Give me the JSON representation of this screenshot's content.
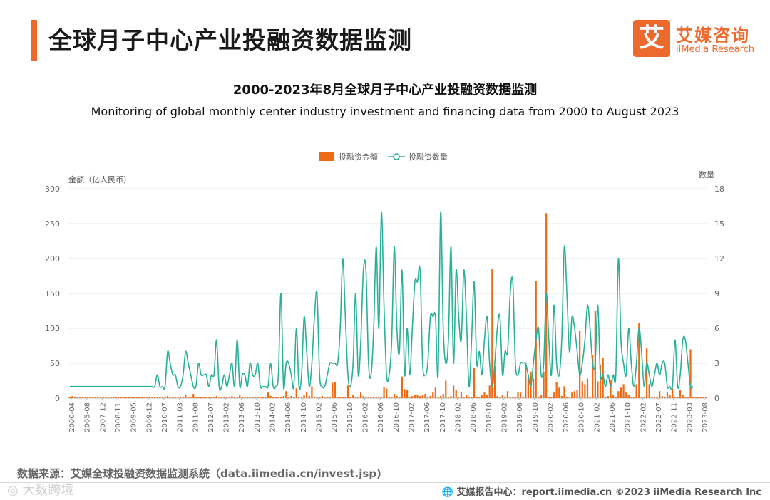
{
  "header": {
    "title": "全球月子中心产业投融资数据监测",
    "logo_glyph": "艾",
    "logo_cn": "艾媒咨询",
    "logo_en": "iiMedia Research",
    "accent": "#ee6a2c"
  },
  "chart_data": {
    "type": "bar+line",
    "title": "2000-2023年8月全球月子中心产业投融资数据监测",
    "subtitle": "Monitoring of global monthly center industry investment and financing data from 2000 to August 2023",
    "left_axis_label": "金额（亿人民币）",
    "right_axis_label": "数量",
    "left_ylim": [
      0,
      300
    ],
    "left_ticks": [
      0,
      50,
      100,
      150,
      200,
      250,
      300
    ],
    "right_ylim": [
      0,
      18
    ],
    "right_ticks": [
      0,
      3,
      6,
      9,
      12,
      15,
      18
    ],
    "x_tick_labels": [
      "2000-04",
      "2005-08",
      "2007-12",
      "2008-11",
      "2009-05",
      "2009-12",
      "2010-07",
      "2011-03",
      "2011-08",
      "2012-07",
      "2013-02",
      "2013-06",
      "2013-10",
      "2014-02",
      "2014-06",
      "2014-10",
      "2015-02",
      "2015-06",
      "2015-10",
      "2016-02",
      "2016-06",
      "2016-10",
      "2017-02",
      "2017-06",
      "2017-10",
      "2018-02",
      "2018-06",
      "2018-10",
      "2019-02",
      "2019-06",
      "2019-10",
      "2020-02",
      "2020-06",
      "2020-10",
      "2021-02",
      "2021-06",
      "2021-10",
      "2022-02",
      "2022-07",
      "2022-11",
      "2023-03",
      "2023-08"
    ],
    "series": [
      {
        "name": "投融资金额",
        "type": "bar",
        "axis": "left",
        "color": "#ee6a14",
        "values": [
          1,
          3,
          1,
          1,
          1,
          1,
          1,
          1,
          1,
          1,
          1,
          1,
          1,
          1,
          1,
          1,
          1,
          1,
          1,
          2,
          1,
          1,
          1,
          1,
          1,
          1,
          1,
          1,
          1,
          1,
          1,
          2,
          1,
          1,
          1,
          1,
          1,
          2,
          3,
          1,
          2,
          1,
          1,
          1,
          2,
          5,
          1,
          2,
          6,
          1,
          2,
          1,
          1,
          2,
          1,
          1,
          2,
          3,
          1,
          2,
          1,
          1,
          1,
          3,
          1,
          2,
          4,
          1,
          1,
          2,
          1,
          1,
          1,
          2,
          1,
          1,
          1,
          8,
          3,
          1,
          2,
          1,
          1,
          3,
          10,
          2,
          3,
          1,
          14,
          2,
          1,
          5,
          8,
          3,
          17,
          2,
          1,
          1,
          3,
          1,
          1,
          2,
          22,
          23,
          1,
          2,
          1,
          1,
          18,
          2,
          5,
          1,
          2,
          8,
          3,
          1,
          1,
          2,
          1,
          1,
          1,
          2,
          16,
          14,
          1,
          2,
          6,
          3,
          1,
          31,
          13,
          12,
          1,
          3,
          4,
          5,
          3,
          4,
          6,
          1,
          3,
          8,
          15,
          1,
          3,
          6,
          25,
          1,
          3,
          18,
          12,
          1,
          8,
          1,
          4,
          1,
          1,
          44,
          2,
          1,
          5,
          8,
          4,
          18,
          185,
          46,
          3,
          2,
          4,
          1,
          10,
          2,
          1,
          2,
          9,
          8,
          1,
          47,
          30,
          38,
          28,
          168,
          1,
          4,
          38,
          265,
          2,
          1,
          8,
          23,
          15,
          3,
          17,
          1,
          1,
          8,
          10,
          12,
          96,
          24,
          20,
          28,
          1,
          62,
          125,
          24,
          47,
          58,
          1,
          3,
          26,
          4,
          1,
          10,
          15,
          20,
          8,
          4,
          2,
          1,
          20,
          108,
          2,
          1,
          72,
          20,
          1,
          2,
          1,
          10,
          3,
          1,
          8,
          4,
          14,
          2,
          1,
          12,
          4,
          1,
          1,
          70,
          2,
          1,
          1,
          1,
          2,
          1
        ]
      },
      {
        "name": "投融资数量",
        "type": "line",
        "axis": "right",
        "color": "#2ab099",
        "values": [
          1,
          1,
          1,
          1,
          1,
          1,
          1,
          1,
          1,
          1,
          1,
          1,
          1,
          1,
          1,
          1,
          1,
          1,
          1,
          1,
          1,
          1,
          1,
          1,
          1,
          1,
          1,
          1,
          1,
          1,
          1,
          1,
          1,
          1,
          2,
          1,
          1,
          1,
          4,
          3,
          2,
          2,
          1,
          1,
          2,
          4,
          3,
          2,
          1,
          1,
          3,
          2,
          2,
          2,
          1,
          2,
          2,
          5,
          1,
          1,
          2,
          1,
          2,
          3,
          1,
          5,
          1,
          2,
          2,
          1,
          3,
          2,
          2,
          3,
          1,
          1,
          1,
          1,
          3,
          1,
          1,
          2,
          9,
          1,
          3,
          3,
          2,
          1,
          6,
          1,
          2,
          7,
          4,
          1,
          3,
          7,
          9,
          2,
          1,
          1,
          2,
          3,
          3,
          3,
          3,
          6,
          12,
          7,
          2,
          1,
          3,
          9,
          2,
          5,
          11,
          11,
          3,
          2,
          6,
          13,
          6,
          16,
          8,
          2,
          2,
          5,
          13,
          6,
          4,
          11,
          2,
          6,
          2,
          6,
          10,
          10,
          11,
          3,
          2,
          3,
          7,
          7,
          7,
          2,
          16,
          6,
          3,
          5,
          13,
          3,
          11,
          7,
          5,
          11,
          7,
          1,
          5,
          10,
          3,
          4,
          2,
          5,
          7,
          3,
          1,
          3,
          6,
          7,
          2,
          4,
          4,
          9,
          10,
          3,
          2,
          3,
          3,
          3,
          2,
          1,
          3,
          5,
          6,
          2,
          3,
          9,
          5,
          2,
          8,
          3,
          2,
          5,
          13,
          9,
          4,
          7,
          6,
          4,
          2,
          3,
          5,
          8,
          6,
          3,
          3,
          8,
          2,
          2,
          1,
          2,
          1,
          2,
          2,
          12,
          5,
          3,
          2,
          6,
          3,
          1,
          3,
          6,
          4,
          1,
          3,
          2,
          1,
          2,
          3,
          2,
          3,
          3,
          1,
          1,
          1,
          5,
          1,
          2,
          5,
          5,
          3,
          1,
          1
        ]
      }
    ]
  },
  "footer": {
    "source": "数据来源：艾媒全球投融资数据监测系统（data.iimedia.cn/invest.jsp)",
    "watermark": "◎ 大数跨境",
    "right": "🌐 艾媒报告中心：report.iimedia.cn   ©2023  iiMedia Research  Inc"
  }
}
